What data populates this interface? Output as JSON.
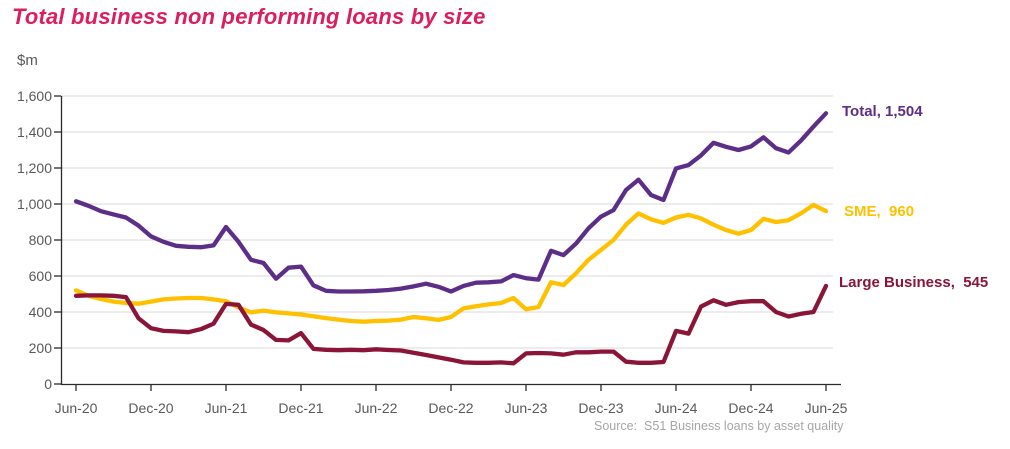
{
  "title": "Total business non performing loans by size",
  "y_axis": {
    "unit_label": "$m",
    "tick_labels": [
      "0",
      "200",
      "400",
      "600",
      "800",
      "1,000",
      "1,200",
      "1,400",
      "1,600"
    ]
  },
  "x_axis": {
    "tick_labels": [
      "Jun-20",
      "Dec-20",
      "Jun-21",
      "Dec-21",
      "Jun-22",
      "Dec-22",
      "Jun-23",
      "Dec-23",
      "Jun-24",
      "Dec-24",
      "Jun-25"
    ]
  },
  "series_end_labels": {
    "total": "Total, 1,504",
    "sme": "SME,  960",
    "large": "Large Business,  545"
  },
  "source_note": "Source:  S51 Business loans by asset quality",
  "colors": {
    "title": "#DC1D5E",
    "total": "#5C2E87",
    "sme": "#FFC000",
    "large": "#8A1538",
    "axis": "#2B2B2B",
    "axis_text": "#595959",
    "gridline": "#D9D9D9",
    "source_text": "#A6A6A6"
  },
  "chart_data": {
    "type": "line",
    "title": "Total business non performing loans by size",
    "ylabel": "$m",
    "ylim": [
      0,
      1600
    ],
    "y_step": 200,
    "grid": "horizontal",
    "legend_position": "right-of-line end labels",
    "x_label_interval_months": 6,
    "x": [
      "Jun-20",
      "Jul-20",
      "Aug-20",
      "Sep-20",
      "Oct-20",
      "Nov-20",
      "Dec-20",
      "Jan-21",
      "Feb-21",
      "Mar-21",
      "Apr-21",
      "May-21",
      "Jun-21",
      "Jul-21",
      "Aug-21",
      "Sep-21",
      "Oct-21",
      "Nov-21",
      "Dec-21",
      "Jan-22",
      "Feb-22",
      "Mar-22",
      "Apr-22",
      "May-22",
      "Jun-22",
      "Jul-22",
      "Aug-22",
      "Sep-22",
      "Oct-22",
      "Nov-22",
      "Dec-22",
      "Jan-23",
      "Feb-23",
      "Mar-23",
      "Apr-23",
      "May-23",
      "Jun-23",
      "Jul-23",
      "Aug-23",
      "Sep-23",
      "Oct-23",
      "Nov-23",
      "Dec-23",
      "Jan-24",
      "Feb-24",
      "Mar-24",
      "Apr-24",
      "May-24",
      "Jun-24",
      "Jul-24",
      "Aug-24",
      "Sep-24",
      "Oct-24",
      "Nov-24",
      "Dec-24",
      "Jan-25",
      "Feb-25",
      "Mar-25",
      "Apr-25",
      "May-25",
      "Jun-25"
    ],
    "series": [
      {
        "id": "sme",
        "name": "SME",
        "color": "#FFC000",
        "end_value": 960,
        "values": [
          520,
          490,
          472,
          458,
          450,
          446,
          458,
          470,
          475,
          478,
          478,
          470,
          460,
          425,
          398,
          408,
          398,
          392,
          386,
          376,
          366,
          358,
          350,
          346,
          350,
          352,
          358,
          372,
          365,
          356,
          372,
          420,
          432,
          442,
          450,
          478,
          415,
          428,
          565,
          550,
          615,
          690,
          745,
          800,
          885,
          948,
          915,
          895,
          925,
          940,
          920,
          885,
          855,
          835,
          855,
          918,
          900,
          910,
          948,
          995,
          960
        ]
      },
      {
        "id": "large",
        "name": "Large Business",
        "color": "#8A1538",
        "end_value": 545,
        "values": [
          490,
          492,
          492,
          490,
          483,
          365,
          310,
          295,
          292,
          288,
          305,
          335,
          445,
          440,
          330,
          300,
          245,
          242,
          283,
          195,
          190,
          188,
          190,
          188,
          193,
          189,
          186,
          174,
          161,
          148,
          135,
          120,
          118,
          118,
          120,
          115,
          170,
          172,
          170,
          163,
          176,
          176,
          180,
          180,
          124,
          118,
          118,
          122,
          295,
          280,
          430,
          465,
          440,
          455,
          460,
          460,
          400,
          375,
          390,
          400,
          545
        ]
      },
      {
        "id": "total",
        "name": "Total",
        "color": "#5C2E87",
        "end_value": 1504,
        "values": [
          1015,
          990,
          960,
          942,
          925,
          880,
          820,
          790,
          768,
          762,
          760,
          770,
          872,
          790,
          690,
          672,
          585,
          646,
          652,
          548,
          518,
          514,
          514,
          515,
          518,
          522,
          530,
          542,
          557,
          540,
          514,
          545,
          563,
          565,
          570,
          605,
          588,
          580,
          740,
          716,
          780,
          865,
          930,
          966,
          1078,
          1135,
          1050,
          1022,
          1198,
          1216,
          1270,
          1340,
          1318,
          1300,
          1320,
          1370,
          1310,
          1286,
          1352,
          1430,
          1504
        ]
      }
    ]
  }
}
